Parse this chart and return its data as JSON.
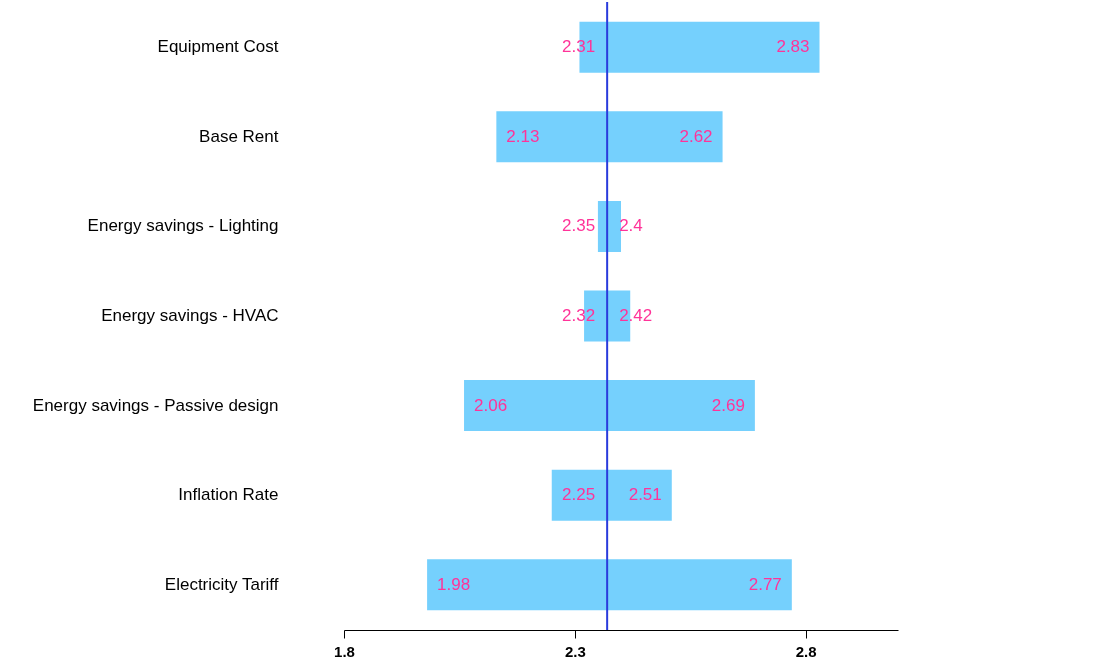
{
  "chart_data": {
    "type": "bar",
    "orientation": "horizontal",
    "categories": [
      "Equipment Cost",
      "Base Rent",
      "Energy savings - Lighting",
      "Energy savings - HVAC",
      "Energy savings - Passive design",
      "Inflation Rate",
      "Electricity Tariff"
    ],
    "base": [
      2.31,
      2.13,
      2.35,
      2.32,
      2.06,
      2.25,
      1.98
    ],
    "values": [
      0.52,
      0.49,
      0.05,
      0.1,
      0.63,
      0.26,
      0.79
    ],
    "color": "#75d0fd",
    "xlim": [
      1.8,
      3.0
    ],
    "xticks": [
      1.8,
      2.3,
      2.8
    ],
    "grid": false,
    "ref_lines": [
      {
        "axis": "x",
        "value": 2.37,
        "color": "#2a3bdc"
      }
    ],
    "annotations": [
      {
        "text": "2.31",
        "x": 2.31,
        "y": "Equipment Cost"
      },
      {
        "text": "2.83",
        "x": 2.83,
        "y": "Equipment Cost"
      },
      {
        "text": "2.13",
        "x": 2.13,
        "y": "Base Rent"
      },
      {
        "text": "2.62",
        "x": 2.62,
        "y": "Base Rent"
      },
      {
        "text": "2.35",
        "x": 2.35,
        "y": "Energy savings - Lighting"
      },
      {
        "text": "2.4",
        "x": 2.4,
        "y": "Energy savings - Lighting"
      },
      {
        "text": "2.32",
        "x": 2.32,
        "y": "Energy savings - HVAC"
      },
      {
        "text": "2.42",
        "x": 2.42,
        "y": "Energy savings - HVAC"
      },
      {
        "text": "2.06",
        "x": 2.06,
        "y": "Energy savings - Passive design"
      },
      {
        "text": "2.69",
        "x": 2.69,
        "y": "Energy savings - Passive design"
      },
      {
        "text": "2.25",
        "x": 2.25,
        "y": "Inflation Rate"
      },
      {
        "text": "2.51",
        "x": 2.51,
        "y": "Inflation Rate"
      },
      {
        "text": "1.98",
        "x": 1.98,
        "y": "Electricity Tariff"
      },
      {
        "text": "2.77",
        "x": 2.77,
        "y": "Electricity Tariff"
      }
    ]
  }
}
